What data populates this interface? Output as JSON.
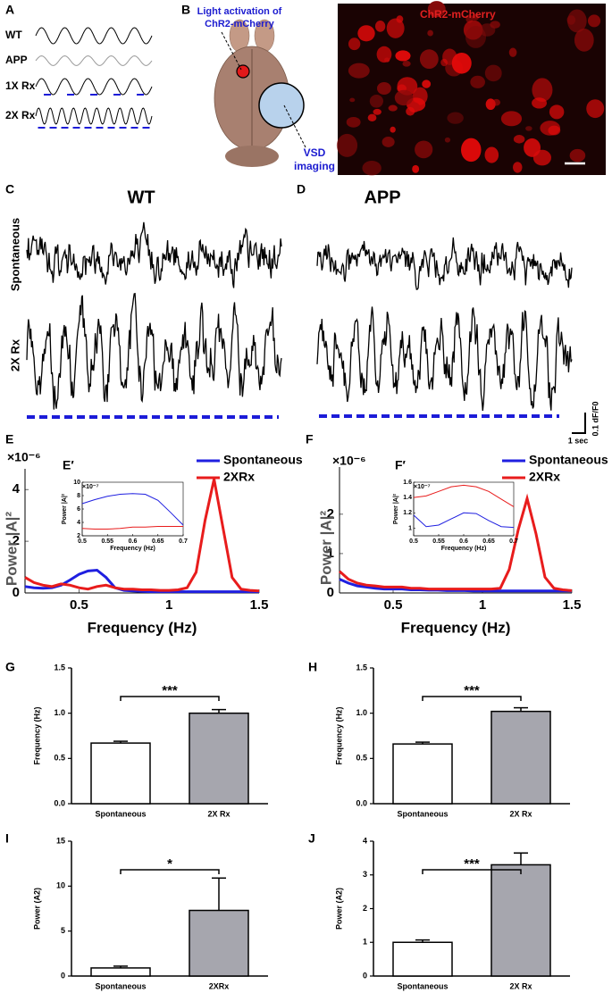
{
  "panel_a": {
    "label": "A",
    "rows": [
      "WT",
      "APP",
      "1X Rx",
      "2X Rx"
    ]
  },
  "panel_b": {
    "label": "B",
    "light_label": [
      "Light activation of",
      "ChR2-mCherry"
    ],
    "vsd_label": [
      "VSD",
      "imaging"
    ],
    "micrograph_label": "ChR2-mCherry"
  },
  "panel_c": {
    "label": "C",
    "title": "WT",
    "rows": [
      "Spontaneous",
      "2X Rx"
    ]
  },
  "panel_d": {
    "label": "D",
    "title": "APP"
  },
  "scale_bar": {
    "time": "1 sec",
    "amplitude": "0.1 dF/F0"
  },
  "chart_data": [
    {
      "type": "line",
      "label": "E",
      "multiplier": "×10⁻⁶",
      "xlabel": "Frequency (Hz)",
      "ylabel": "Power |A|²",
      "x": [
        0.2,
        0.25,
        0.3,
        0.35,
        0.4,
        0.45,
        0.5,
        0.55,
        0.6,
        0.65,
        0.7,
        0.75,
        0.8,
        0.85,
        0.9,
        0.95,
        1,
        1.05,
        1.1,
        1.15,
        1.2,
        1.25,
        1.3,
        1.35,
        1.4,
        1.45,
        1.5
      ],
      "series": [
        {
          "name": "Spontaneous",
          "color": "#1f1fe0",
          "values": [
            0.25,
            0.2,
            0.18,
            0.2,
            0.3,
            0.5,
            0.72,
            0.85,
            0.88,
            0.6,
            0.2,
            0.1,
            0.08,
            0.06,
            0.05,
            0.05,
            0.05,
            0.05,
            0.05,
            0.05,
            0.05,
            0.05,
            0.05,
            0.05,
            0.05,
            0.05,
            0.05
          ]
        },
        {
          "name": "2XRx",
          "color": "#e81c1c",
          "values": [
            0.6,
            0.4,
            0.3,
            0.25,
            0.35,
            0.3,
            0.2,
            0.15,
            0.25,
            0.3,
            0.2,
            0.15,
            0.15,
            0.12,
            0.12,
            0.1,
            0.1,
            0.12,
            0.2,
            0.8,
            2.8,
            4.4,
            2.5,
            0.6,
            0.15,
            0.1,
            0.08
          ]
        }
      ],
      "xlim": [
        0.2,
        1.5
      ],
      "xticks": [
        0.5,
        1,
        1.5
      ],
      "ylim": [
        0,
        4.8
      ],
      "yticks": [
        0,
        2,
        4
      ],
      "legend": "upper right"
    },
    {
      "type": "line",
      "label": "E′",
      "multiplier": "×10⁻⁷",
      "xlabel": "Frequency (Hz)",
      "ylabel": "Power |A|²",
      "x": [
        0.5,
        0.525,
        0.55,
        0.575,
        0.6,
        0.625,
        0.65,
        0.675,
        0.7
      ],
      "series": [
        {
          "color": "#1f1fe0",
          "values": [
            6.8,
            7.4,
            7.9,
            8.2,
            8.3,
            8.2,
            7.3,
            5.5,
            3.6
          ]
        },
        {
          "color": "#e81c1c",
          "values": [
            3.1,
            3.0,
            3.0,
            3.1,
            3.3,
            3.3,
            3.4,
            3.4,
            3.4
          ]
        }
      ],
      "xlim": [
        0.5,
        0.7
      ],
      "xticks": [
        0.5,
        0.55,
        0.6,
        0.65,
        0.7
      ],
      "ylim": [
        2,
        10
      ],
      "yticks": [
        2,
        4,
        6,
        8,
        10
      ]
    },
    {
      "type": "line",
      "label": "F",
      "multiplier": "×10⁻⁶",
      "xlabel": "Frequency (Hz)",
      "ylabel": "Power |A|²",
      "x": [
        0.2,
        0.25,
        0.3,
        0.35,
        0.4,
        0.45,
        0.5,
        0.55,
        0.6,
        0.65,
        0.7,
        0.75,
        0.8,
        0.85,
        0.9,
        0.95,
        1,
        1.05,
        1.1,
        1.15,
        1.2,
        1.25,
        1.3,
        1.35,
        1.4,
        1.45,
        1.5
      ],
      "series": [
        {
          "name": "Spontaneous",
          "color": "#1f1fe0",
          "values": [
            0.35,
            0.25,
            0.18,
            0.15,
            0.12,
            0.1,
            0.1,
            0.1,
            0.08,
            0.08,
            0.07,
            0.07,
            0.06,
            0.06,
            0.06,
            0.05,
            0.05,
            0.05,
            0.05,
            0.05,
            0.05,
            0.05,
            0.05,
            0.05,
            0.05,
            0.05,
            0.05
          ]
        },
        {
          "name": "2XRx",
          "color": "#e81c1c",
          "values": [
            0.55,
            0.35,
            0.25,
            0.2,
            0.18,
            0.15,
            0.15,
            0.15,
            0.12,
            0.12,
            0.1,
            0.1,
            0.1,
            0.1,
            0.1,
            0.1,
            0.1,
            0.1,
            0.12,
            0.6,
            1.6,
            2.4,
            1.5,
            0.4,
            0.12,
            0.08,
            0.06
          ]
        }
      ],
      "xlim": [
        0.2,
        1.5
      ],
      "xticks": [
        0.5,
        1,
        1.5
      ],
      "ylim": [
        0,
        3.2
      ],
      "yticks": [
        0,
        1,
        2
      ],
      "legend": "upper right"
    },
    {
      "type": "line",
      "label": "F′",
      "multiplier": "×10⁻⁷",
      "xlabel": "Frequency (Hz)",
      "ylabel": "Power |A|²",
      "x": [
        0.5,
        0.525,
        0.55,
        0.575,
        0.6,
        0.625,
        0.65,
        0.675,
        0.7
      ],
      "series": [
        {
          "color": "#1f1fe0",
          "values": [
            1.17,
            1.02,
            1.04,
            1.12,
            1.2,
            1.19,
            1.1,
            1.02,
            1.01
          ]
        },
        {
          "color": "#e81c1c",
          "values": [
            1.4,
            1.42,
            1.48,
            1.54,
            1.56,
            1.54,
            1.48,
            1.38,
            1.28
          ]
        }
      ],
      "xlim": [
        0.5,
        0.7
      ],
      "xticks": [
        0.5,
        0.55,
        0.6,
        0.65,
        0.7
      ],
      "ylim": [
        0.9,
        1.6
      ],
      "yticks": [
        1,
        1.2,
        1.4,
        1.6
      ]
    },
    {
      "type": "bar",
      "label": "G",
      "ylabel": "Frequency (Hz)",
      "categories": [
        "Spontaneous",
        "2X Rx"
      ],
      "values": [
        0.67,
        1.0
      ],
      "errors": [
        0.02,
        0.04
      ],
      "colors": [
        "#ffffff",
        "#a6a6ae"
      ],
      "annotation": "***",
      "ylim": [
        0,
        1.5
      ],
      "yticks": [
        {
          "value": 0,
          "label": "0.0"
        },
        {
          "value": 0.5,
          "label": "0.5"
        },
        {
          "value": 1,
          "label": "1.0"
        },
        {
          "value": 1.5,
          "label": "1.5"
        }
      ]
    },
    {
      "type": "bar",
      "label": "H",
      "ylabel": "Frequency (Hz)",
      "categories": [
        "Spontaneous",
        "2X Rx"
      ],
      "values": [
        0.66,
        1.02
      ],
      "errors": [
        0.02,
        0.04
      ],
      "colors": [
        "#ffffff",
        "#a6a6ae"
      ],
      "annotation": "***",
      "ylim": [
        0,
        1.5
      ],
      "yticks": [
        {
          "value": 0,
          "label": "0.0"
        },
        {
          "value": 0.5,
          "label": "0.5"
        },
        {
          "value": 1,
          "label": "1.0"
        },
        {
          "value": 1.5,
          "label": "1.5"
        }
      ]
    },
    {
      "type": "bar",
      "label": "I",
      "ylabel": "Power (A2)",
      "categories": [
        "Spontaneous",
        "2XRx"
      ],
      "values": [
        0.9,
        7.3
      ],
      "errors": [
        0.2,
        3.6
      ],
      "colors": [
        "#ffffff",
        "#a6a6ae"
      ],
      "annotation": "*",
      "ylim": [
        0,
        15
      ],
      "yticks": [
        0,
        5,
        10,
        15
      ]
    },
    {
      "type": "bar",
      "label": "J",
      "ylabel": "Power (A2)",
      "categories": [
        "Spontaneous",
        "2X Rx"
      ],
      "values": [
        1.0,
        3.3
      ],
      "errors": [
        0.07,
        0.35
      ],
      "colors": [
        "#ffffff",
        "#a6a6ae"
      ],
      "annotation": "***",
      "ylim": [
        0,
        4
      ],
      "yticks": [
        0,
        1,
        2,
        3,
        4
      ]
    }
  ]
}
